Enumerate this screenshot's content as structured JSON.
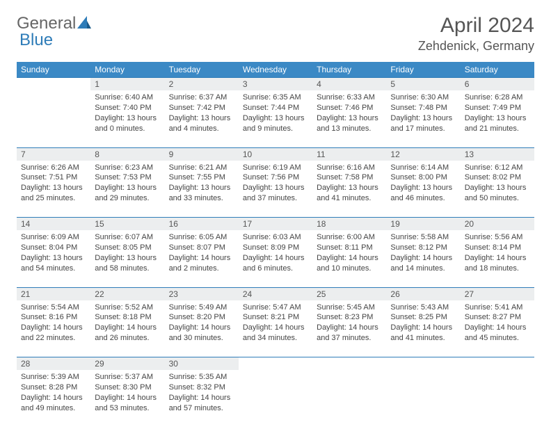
{
  "brand": {
    "part1": "General",
    "part2": "Blue"
  },
  "title": "April 2024",
  "location": "Zehdenick, Germany",
  "colors": {
    "header_bg": "#3b89c5",
    "header_text": "#ffffff",
    "daynum_bg": "#eceeef",
    "rule": "#2e7cb8",
    "text": "#444444",
    "title_text": "#555555"
  },
  "weekdays": [
    "Sunday",
    "Monday",
    "Tuesday",
    "Wednesday",
    "Thursday",
    "Friday",
    "Saturday"
  ],
  "weeks": [
    [
      null,
      {
        "n": "1",
        "sr": "Sunrise: 6:40 AM",
        "ss": "Sunset: 7:40 PM",
        "d1": "Daylight: 13 hours",
        "d2": "and 0 minutes."
      },
      {
        "n": "2",
        "sr": "Sunrise: 6:37 AM",
        "ss": "Sunset: 7:42 PM",
        "d1": "Daylight: 13 hours",
        "d2": "and 4 minutes."
      },
      {
        "n": "3",
        "sr": "Sunrise: 6:35 AM",
        "ss": "Sunset: 7:44 PM",
        "d1": "Daylight: 13 hours",
        "d2": "and 9 minutes."
      },
      {
        "n": "4",
        "sr": "Sunrise: 6:33 AM",
        "ss": "Sunset: 7:46 PM",
        "d1": "Daylight: 13 hours",
        "d2": "and 13 minutes."
      },
      {
        "n": "5",
        "sr": "Sunrise: 6:30 AM",
        "ss": "Sunset: 7:48 PM",
        "d1": "Daylight: 13 hours",
        "d2": "and 17 minutes."
      },
      {
        "n": "6",
        "sr": "Sunrise: 6:28 AM",
        "ss": "Sunset: 7:49 PM",
        "d1": "Daylight: 13 hours",
        "d2": "and 21 minutes."
      }
    ],
    [
      {
        "n": "7",
        "sr": "Sunrise: 6:26 AM",
        "ss": "Sunset: 7:51 PM",
        "d1": "Daylight: 13 hours",
        "d2": "and 25 minutes."
      },
      {
        "n": "8",
        "sr": "Sunrise: 6:23 AM",
        "ss": "Sunset: 7:53 PM",
        "d1": "Daylight: 13 hours",
        "d2": "and 29 minutes."
      },
      {
        "n": "9",
        "sr": "Sunrise: 6:21 AM",
        "ss": "Sunset: 7:55 PM",
        "d1": "Daylight: 13 hours",
        "d2": "and 33 minutes."
      },
      {
        "n": "10",
        "sr": "Sunrise: 6:19 AM",
        "ss": "Sunset: 7:56 PM",
        "d1": "Daylight: 13 hours",
        "d2": "and 37 minutes."
      },
      {
        "n": "11",
        "sr": "Sunrise: 6:16 AM",
        "ss": "Sunset: 7:58 PM",
        "d1": "Daylight: 13 hours",
        "d2": "and 41 minutes."
      },
      {
        "n": "12",
        "sr": "Sunrise: 6:14 AM",
        "ss": "Sunset: 8:00 PM",
        "d1": "Daylight: 13 hours",
        "d2": "and 46 minutes."
      },
      {
        "n": "13",
        "sr": "Sunrise: 6:12 AM",
        "ss": "Sunset: 8:02 PM",
        "d1": "Daylight: 13 hours",
        "d2": "and 50 minutes."
      }
    ],
    [
      {
        "n": "14",
        "sr": "Sunrise: 6:09 AM",
        "ss": "Sunset: 8:04 PM",
        "d1": "Daylight: 13 hours",
        "d2": "and 54 minutes."
      },
      {
        "n": "15",
        "sr": "Sunrise: 6:07 AM",
        "ss": "Sunset: 8:05 PM",
        "d1": "Daylight: 13 hours",
        "d2": "and 58 minutes."
      },
      {
        "n": "16",
        "sr": "Sunrise: 6:05 AM",
        "ss": "Sunset: 8:07 PM",
        "d1": "Daylight: 14 hours",
        "d2": "and 2 minutes."
      },
      {
        "n": "17",
        "sr": "Sunrise: 6:03 AM",
        "ss": "Sunset: 8:09 PM",
        "d1": "Daylight: 14 hours",
        "d2": "and 6 minutes."
      },
      {
        "n": "18",
        "sr": "Sunrise: 6:00 AM",
        "ss": "Sunset: 8:11 PM",
        "d1": "Daylight: 14 hours",
        "d2": "and 10 minutes."
      },
      {
        "n": "19",
        "sr": "Sunrise: 5:58 AM",
        "ss": "Sunset: 8:12 PM",
        "d1": "Daylight: 14 hours",
        "d2": "and 14 minutes."
      },
      {
        "n": "20",
        "sr": "Sunrise: 5:56 AM",
        "ss": "Sunset: 8:14 PM",
        "d1": "Daylight: 14 hours",
        "d2": "and 18 minutes."
      }
    ],
    [
      {
        "n": "21",
        "sr": "Sunrise: 5:54 AM",
        "ss": "Sunset: 8:16 PM",
        "d1": "Daylight: 14 hours",
        "d2": "and 22 minutes."
      },
      {
        "n": "22",
        "sr": "Sunrise: 5:52 AM",
        "ss": "Sunset: 8:18 PM",
        "d1": "Daylight: 14 hours",
        "d2": "and 26 minutes."
      },
      {
        "n": "23",
        "sr": "Sunrise: 5:49 AM",
        "ss": "Sunset: 8:20 PM",
        "d1": "Daylight: 14 hours",
        "d2": "and 30 minutes."
      },
      {
        "n": "24",
        "sr": "Sunrise: 5:47 AM",
        "ss": "Sunset: 8:21 PM",
        "d1": "Daylight: 14 hours",
        "d2": "and 34 minutes."
      },
      {
        "n": "25",
        "sr": "Sunrise: 5:45 AM",
        "ss": "Sunset: 8:23 PM",
        "d1": "Daylight: 14 hours",
        "d2": "and 37 minutes."
      },
      {
        "n": "26",
        "sr": "Sunrise: 5:43 AM",
        "ss": "Sunset: 8:25 PM",
        "d1": "Daylight: 14 hours",
        "d2": "and 41 minutes."
      },
      {
        "n": "27",
        "sr": "Sunrise: 5:41 AM",
        "ss": "Sunset: 8:27 PM",
        "d1": "Daylight: 14 hours",
        "d2": "and 45 minutes."
      }
    ],
    [
      {
        "n": "28",
        "sr": "Sunrise: 5:39 AM",
        "ss": "Sunset: 8:28 PM",
        "d1": "Daylight: 14 hours",
        "d2": "and 49 minutes."
      },
      {
        "n": "29",
        "sr": "Sunrise: 5:37 AM",
        "ss": "Sunset: 8:30 PM",
        "d1": "Daylight: 14 hours",
        "d2": "and 53 minutes."
      },
      {
        "n": "30",
        "sr": "Sunrise: 5:35 AM",
        "ss": "Sunset: 8:32 PM",
        "d1": "Daylight: 14 hours",
        "d2": "and 57 minutes."
      },
      null,
      null,
      null,
      null
    ]
  ]
}
